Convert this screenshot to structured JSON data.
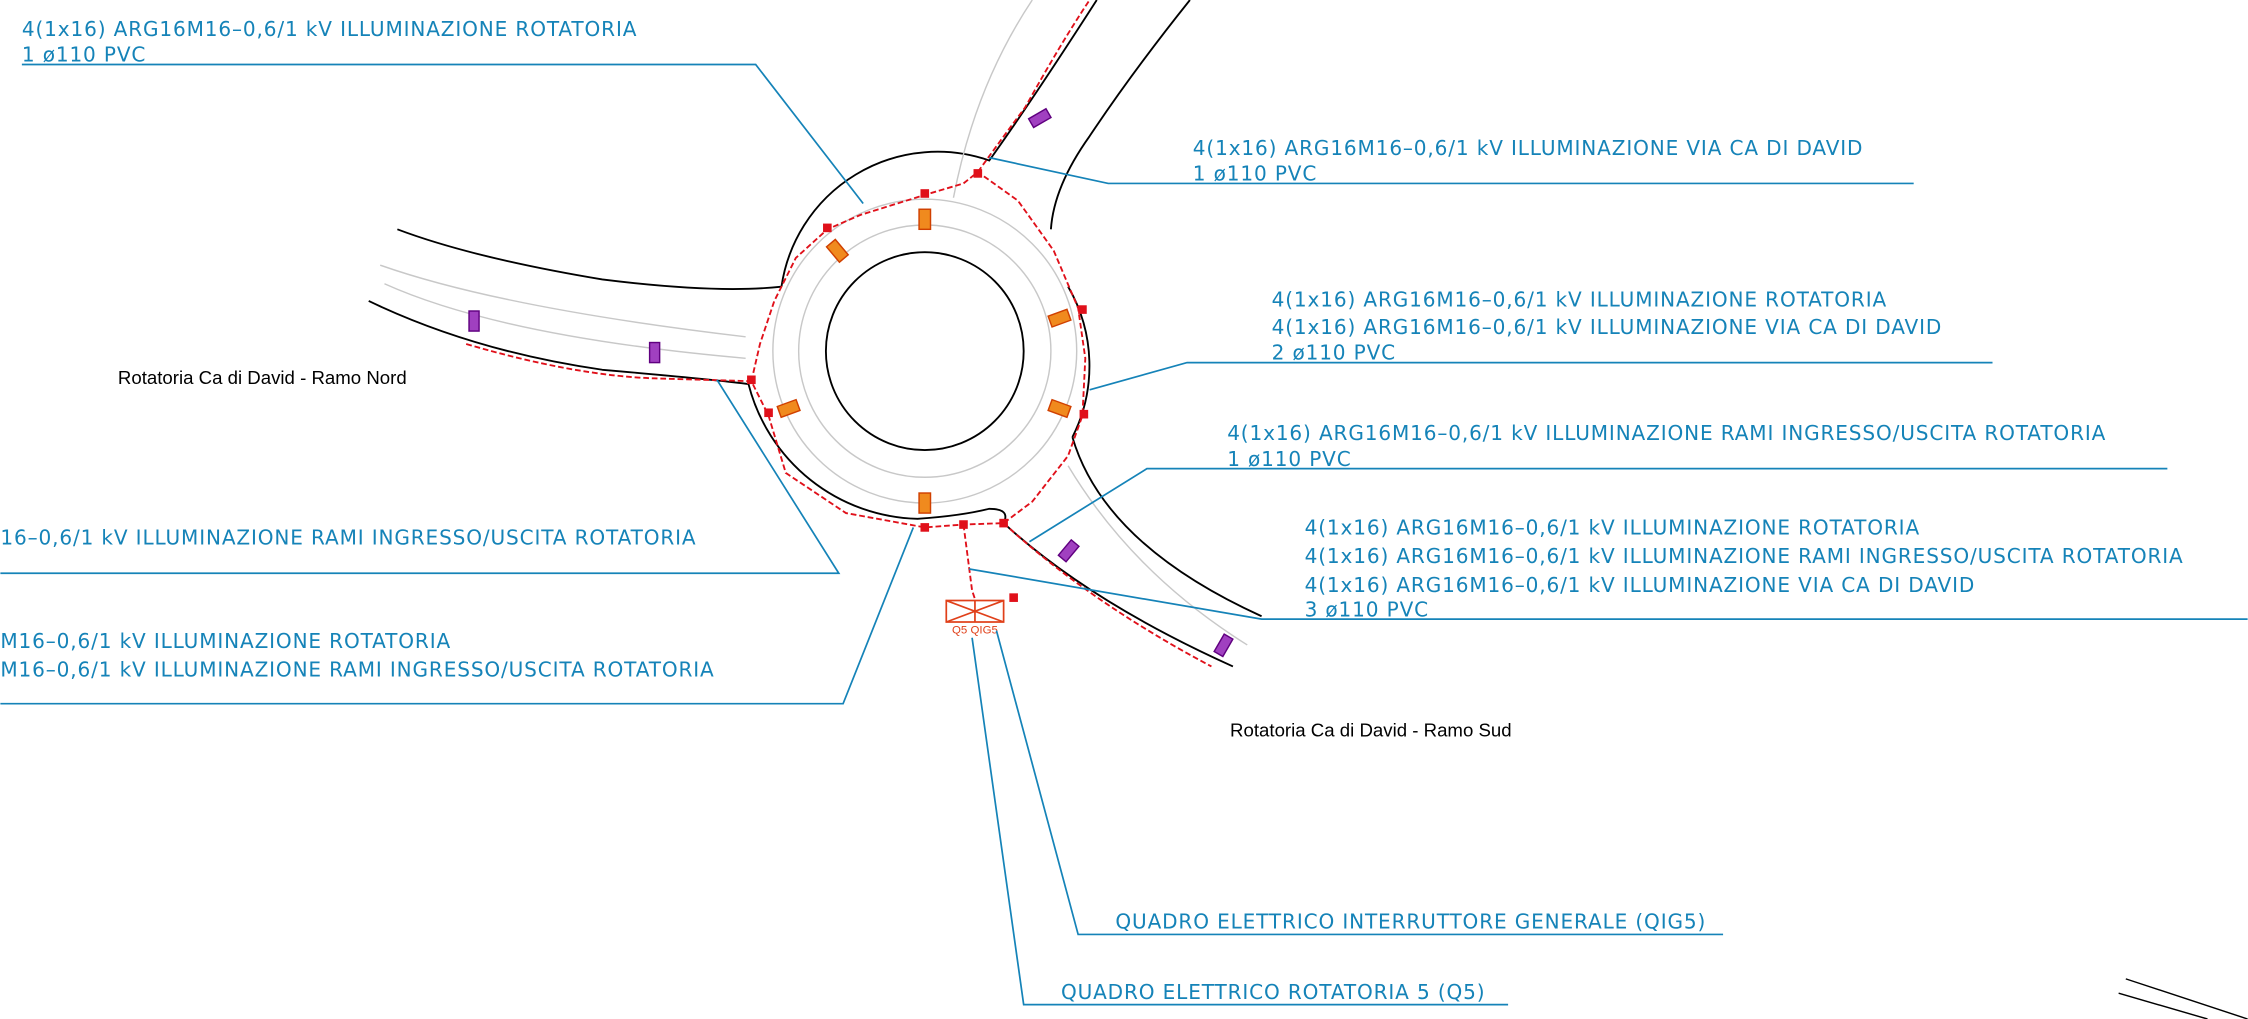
{
  "annotations": [
    {
      "lines": [
        "4(1x16) ARG16M16–0,6/1 kV ILLUMINAZIONE ROTATORIA",
        "1 ø110 PVC"
      ]
    },
    {
      "lines": [
        "4(1x16) ARG16M16–0,6/1 kV ILLUMINAZIONE VIA CA DI DAVID",
        "1 ø110 PVC"
      ]
    },
    {
      "lines": [
        "4(1x16) ARG16M16–0,6/1 kV ILLUMINAZIONE ROTATORIA",
        "4(1x16) ARG16M16–0,6/1 kV ILLUMINAZIONE VIA CA DI DAVID",
        "2 ø110 PVC"
      ]
    },
    {
      "lines": [
        "4(1x16) ARG16M16–0,6/1 kV ILLUMINAZIONE RAMI INGRESSO/USCITA ROTATORIA",
        "1 ø110 PVC"
      ]
    },
    {
      "lines": [
        "4(1x16) ARG16M16–0,6/1 kV ILLUMINAZIONE ROTATORIA",
        "4(1x16) ARG16M16–0,6/1 kV ILLUMINAZIONE RAMI INGRESSO/USCITA ROTATORIA",
        "4(1x16) ARG16M16–0,6/1 kV ILLUMINAZIONE VIA CA DI DAVID",
        "3 ø110 PVC"
      ]
    },
    {
      "lines": [
        "16–0,6/1 kV ILLUMINAZIONE RAMI INGRESSO/USCITA ROTATORIA"
      ]
    },
    {
      "lines": [
        "M16–0,6/1 kV ILLUMINAZIONE ROTATORIA",
        "M16–0,6/1 kV ILLUMINAZIONE RAMI INGRESSO/USCITA ROTATORIA"
      ]
    }
  ],
  "labels": {
    "ramo_nord": "Rotatoria Ca di David - Ramo Nord",
    "ramo_sud": "Rotatoria Ca di David - Ramo Sud",
    "panel": "Q5 QIG5"
  },
  "panels": [
    "QUADRO ELETTRICO INTERRUTTORE GENERALE (QIG5)",
    "QUADRO ELETTRICO ROTATORIA 5 (Q5)"
  ]
}
